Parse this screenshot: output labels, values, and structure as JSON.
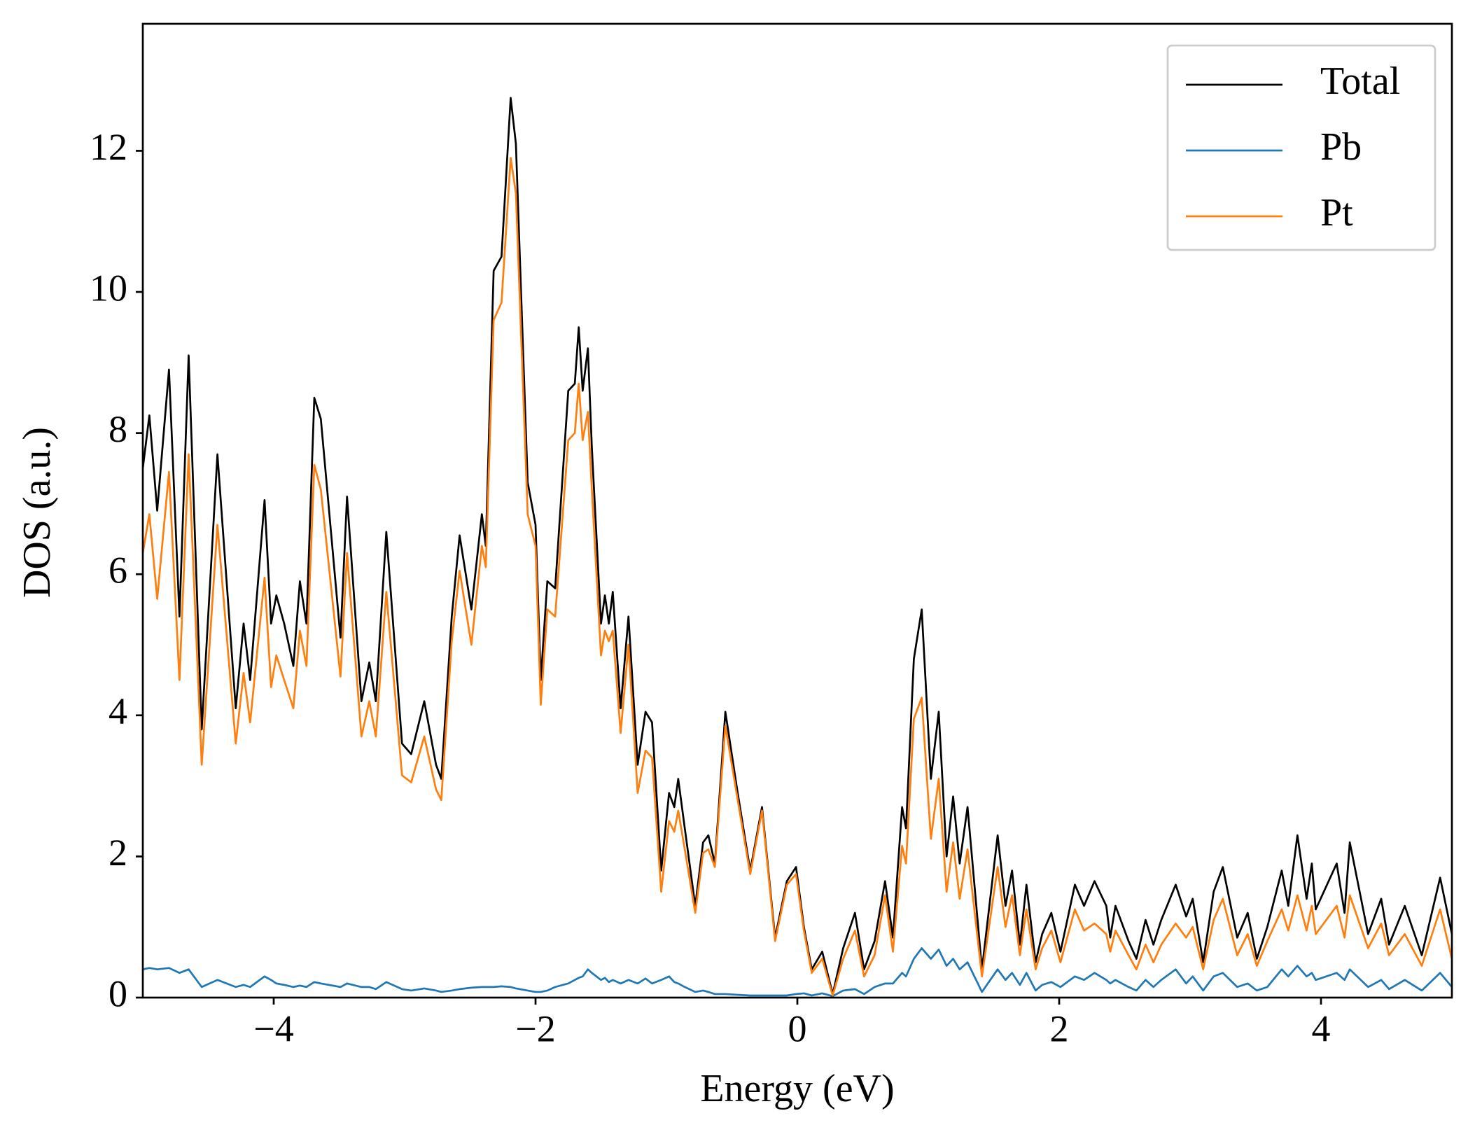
{
  "chart_data": {
    "type": "line",
    "xlabel": "Energy (eV)",
    "ylabel": "DOS (a.u.)",
    "xlim": [
      -5,
      5
    ],
    "ylim": [
      0,
      13.8
    ],
    "xticks": [
      {
        "value": -4,
        "label": "−4"
      },
      {
        "value": -2,
        "label": "−2"
      },
      0,
      2,
      4
    ],
    "yticks": [
      0,
      2,
      4,
      6,
      8,
      10,
      12
    ],
    "legend": "upper right",
    "grid": false,
    "x": [
      -5.0,
      -4.95,
      -4.89,
      -4.8,
      -4.72,
      -4.65,
      -4.55,
      -4.43,
      -4.29,
      -4.23,
      -4.18,
      -4.07,
      -4.02,
      -3.98,
      -3.92,
      -3.85,
      -3.8,
      -3.75,
      -3.69,
      -3.64,
      -3.49,
      -3.44,
      -3.33,
      -3.27,
      -3.22,
      -3.14,
      -3.02,
      -2.95,
      -2.85,
      -2.76,
      -2.72,
      -2.64,
      -2.58,
      -2.49,
      -2.41,
      -2.38,
      -2.32,
      -2.26,
      -2.19,
      -2.15,
      -2.06,
      -2.0,
      -1.96,
      -1.91,
      -1.85,
      -1.75,
      -1.7,
      -1.67,
      -1.64,
      -1.6,
      -1.57,
      -1.5,
      -1.47,
      -1.44,
      -1.41,
      -1.35,
      -1.29,
      -1.22,
      -1.16,
      -1.11,
      -1.04,
      -0.98,
      -0.94,
      -0.91,
      -0.86,
      -0.78,
      -0.72,
      -0.68,
      -0.63,
      -0.55,
      -0.46,
      -0.36,
      -0.27,
      -0.17,
      -0.08,
      -0.01,
      0.05,
      0.11,
      0.19,
      0.27,
      0.35,
      0.44,
      0.51,
      0.59,
      0.67,
      0.73,
      0.8,
      0.83,
      0.89,
      0.95,
      1.02,
      1.08,
      1.14,
      1.19,
      1.24,
      1.3,
      1.41,
      1.53,
      1.59,
      1.64,
      1.7,
      1.75,
      1.82,
      1.87,
      1.94,
      2.01,
      2.12,
      2.19,
      2.27,
      2.36,
      2.39,
      2.43,
      2.53,
      2.59,
      2.66,
      2.72,
      2.78,
      2.89,
      2.97,
      3.02,
      3.1,
      3.18,
      3.25,
      3.36,
      3.44,
      3.51,
      3.59,
      3.7,
      3.75,
      3.82,
      3.89,
      3.93,
      3.96,
      4.12,
      4.18,
      4.22,
      4.36,
      4.46,
      4.52,
      4.64,
      4.77,
      4.91,
      5.0
    ],
    "series": [
      {
        "name": "Total",
        "color": "#000000",
        "values": [
          7.5,
          8.25,
          6.9,
          8.9,
          5.4,
          9.1,
          3.8,
          7.7,
          4.1,
          5.3,
          4.5,
          7.05,
          5.3,
          5.7,
          5.3,
          4.7,
          5.9,
          5.3,
          8.5,
          8.2,
          5.1,
          7.1,
          4.2,
          4.75,
          4.2,
          6.6,
          3.6,
          3.45,
          4.2,
          3.3,
          3.1,
          5.4,
          6.55,
          5.5,
          6.85,
          6.4,
          10.3,
          10.5,
          12.75,
          12.1,
          7.3,
          6.7,
          4.5,
          5.9,
          5.8,
          8.6,
          8.7,
          9.5,
          8.6,
          9.2,
          7.8,
          5.3,
          5.7,
          5.3,
          5.75,
          4.1,
          5.4,
          3.3,
          4.05,
          3.9,
          1.8,
          2.9,
          2.7,
          3.1,
          2.4,
          1.3,
          2.2,
          2.3,
          1.9,
          4.05,
          2.95,
          1.8,
          2.7,
          0.85,
          1.65,
          1.85,
          1.0,
          0.4,
          0.65,
          0.05,
          0.7,
          1.2,
          0.4,
          0.8,
          1.65,
          0.85,
          2.7,
          2.4,
          4.8,
          5.5,
          3.1,
          4.05,
          2.0,
          2.85,
          1.9,
          2.7,
          0.4,
          2.3,
          1.3,
          1.8,
          0.75,
          1.6,
          0.5,
          0.9,
          1.2,
          0.65,
          1.6,
          1.3,
          1.65,
          1.3,
          0.85,
          1.3,
          0.8,
          0.55,
          1.1,
          0.75,
          1.1,
          1.6,
          1.15,
          1.4,
          0.5,
          1.5,
          1.85,
          0.85,
          1.2,
          0.55,
          1.0,
          1.8,
          1.3,
          2.3,
          1.4,
          1.9,
          1.25,
          1.9,
          1.2,
          2.2,
          0.9,
          1.4,
          0.75,
          1.3,
          0.6,
          1.7,
          0.9
        ]
      },
      {
        "name": "Pb",
        "color": "#1f77b4",
        "values": [
          0.4,
          0.42,
          0.4,
          0.42,
          0.35,
          0.4,
          0.15,
          0.25,
          0.15,
          0.18,
          0.15,
          0.3,
          0.25,
          0.2,
          0.18,
          0.15,
          0.17,
          0.15,
          0.22,
          0.2,
          0.15,
          0.2,
          0.15,
          0.15,
          0.12,
          0.22,
          0.12,
          0.1,
          0.13,
          0.1,
          0.08,
          0.1,
          0.12,
          0.14,
          0.15,
          0.15,
          0.15,
          0.16,
          0.15,
          0.13,
          0.1,
          0.08,
          0.08,
          0.1,
          0.15,
          0.2,
          0.25,
          0.28,
          0.3,
          0.4,
          0.35,
          0.25,
          0.28,
          0.22,
          0.25,
          0.2,
          0.25,
          0.2,
          0.27,
          0.2,
          0.25,
          0.3,
          0.22,
          0.2,
          0.15,
          0.08,
          0.1,
          0.08,
          0.05,
          0.05,
          0.04,
          0.03,
          0.03,
          0.03,
          0.03,
          0.05,
          0.06,
          0.03,
          0.06,
          0.02,
          0.1,
          0.12,
          0.05,
          0.15,
          0.2,
          0.2,
          0.35,
          0.3,
          0.55,
          0.7,
          0.55,
          0.68,
          0.45,
          0.55,
          0.4,
          0.5,
          0.08,
          0.4,
          0.25,
          0.35,
          0.18,
          0.35,
          0.1,
          0.18,
          0.22,
          0.15,
          0.3,
          0.25,
          0.35,
          0.25,
          0.2,
          0.25,
          0.15,
          0.1,
          0.25,
          0.15,
          0.25,
          0.4,
          0.2,
          0.3,
          0.1,
          0.3,
          0.35,
          0.15,
          0.2,
          0.1,
          0.15,
          0.4,
          0.3,
          0.45,
          0.3,
          0.35,
          0.25,
          0.35,
          0.25,
          0.4,
          0.15,
          0.25,
          0.12,
          0.25,
          0.1,
          0.35,
          0.15
        ]
      },
      {
        "name": "Pt",
        "color": "#ff7f0e",
        "values": [
          6.3,
          6.85,
          5.65,
          7.45,
          4.5,
          7.7,
          3.3,
          6.7,
          3.6,
          4.6,
          3.9,
          5.95,
          4.4,
          4.85,
          4.5,
          4.1,
          5.2,
          4.7,
          7.55,
          7.2,
          4.55,
          6.3,
          3.7,
          4.2,
          3.7,
          5.75,
          3.15,
          3.05,
          3.7,
          2.95,
          2.8,
          5.05,
          6.05,
          5.0,
          6.4,
          6.1,
          9.6,
          9.85,
          11.9,
          11.4,
          6.85,
          6.4,
          4.15,
          5.5,
          5.4,
          7.9,
          8.0,
          8.7,
          7.9,
          8.3,
          7.2,
          4.85,
          5.2,
          5.05,
          5.2,
          3.75,
          5.0,
          2.9,
          3.5,
          3.4,
          1.5,
          2.5,
          2.35,
          2.65,
          2.1,
          1.2,
          2.05,
          2.1,
          1.85,
          3.85,
          2.85,
          1.75,
          2.65,
          0.8,
          1.6,
          1.75,
          0.95,
          0.35,
          0.55,
          0.03,
          0.55,
          0.95,
          0.3,
          0.6,
          1.45,
          0.65,
          2.15,
          1.9,
          3.95,
          4.25,
          2.25,
          3.1,
          1.5,
          2.2,
          1.4,
          2.1,
          0.3,
          1.85,
          1.0,
          1.45,
          0.6,
          1.25,
          0.4,
          0.7,
          0.95,
          0.5,
          1.25,
          0.95,
          1.05,
          0.9,
          0.65,
          0.95,
          0.6,
          0.4,
          0.75,
          0.5,
          0.75,
          1.05,
          0.85,
          1.0,
          0.4,
          1.1,
          1.4,
          0.6,
          0.9,
          0.45,
          0.8,
          1.25,
          0.95,
          1.45,
          0.95,
          1.3,
          0.9,
          1.3,
          0.85,
          1.45,
          0.7,
          1.05,
          0.6,
          0.9,
          0.45,
          1.25,
          0.55
        ]
      }
    ]
  }
}
